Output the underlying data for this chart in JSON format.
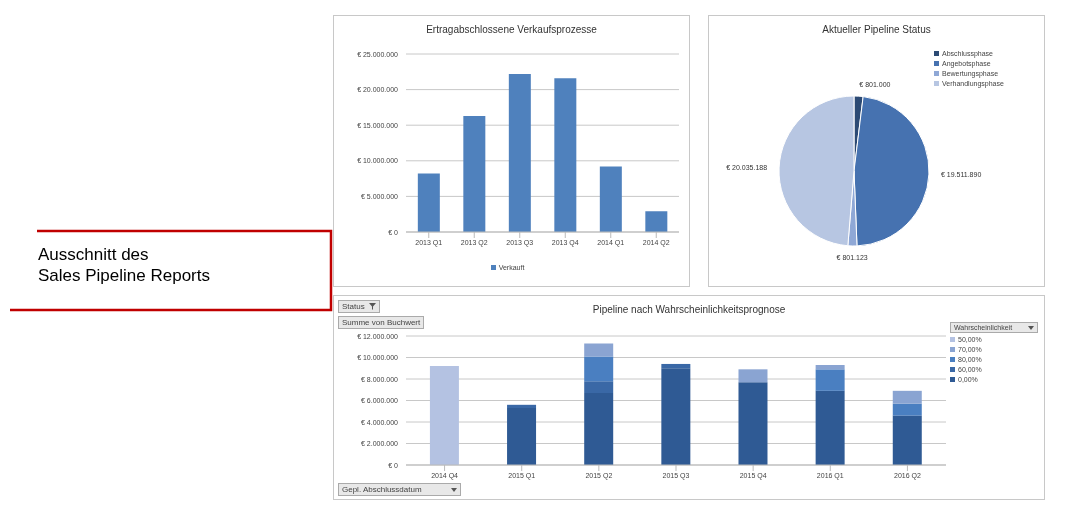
{
  "chart_data": [
    {
      "type": "bar",
      "title": "Ertragabschlossene Verkaufsprozesse",
      "categories": [
        "2013 Q1",
        "2013 Q2",
        "2013 Q3",
        "2013 Q4",
        "2014 Q1",
        "2014 Q2"
      ],
      "series": [
        {
          "name": "Verkauft",
          "color": "#4f81bd",
          "values": [
            8200000,
            16300000,
            22200000,
            21600000,
            9200000,
            2900000
          ]
        }
      ],
      "ylim": [
        0,
        25000000
      ],
      "yticks": [
        {
          "value": 0,
          "label": "€ 0"
        },
        {
          "value": 5000000,
          "label": "€ 5.000.000"
        },
        {
          "value": 10000000,
          "label": "€ 10.000.000"
        },
        {
          "value": 15000000,
          "label": "€ 15.000.000"
        },
        {
          "value": 20000000,
          "label": "€ 20.000.000"
        },
        {
          "value": 25000000,
          "label": "€ 25.000.000"
        }
      ],
      "grid": "y",
      "legend": "bottom"
    },
    {
      "type": "pie",
      "title": "Aktueller Pipeline Status",
      "categories": [
        "Abschlussphase",
        "Angebotsphase",
        "Bewertungsphase",
        "Verhandlungsphase"
      ],
      "values": [
        801000,
        19511890,
        801123,
        20035188
      ],
      "colors": [
        "#2c4a74",
        "#4672b0",
        "#8fa8d6",
        "#b7c6e2"
      ],
      "value_labels": [
        "€ 801.000",
        "€ 19.511.890",
        "€ 801.123",
        "€ 20.035.188"
      ],
      "legend": "top right"
    },
    {
      "type": "bar",
      "title": "Pipeline nach Wahrscheinlichkeitsprognose",
      "categories": [
        "2014 Q4",
        "2015 Q1",
        "2015 Q2",
        "2015 Q3",
        "2015 Q4",
        "2016 Q1",
        "2016 Q2"
      ],
      "series": [
        {
          "name": "0,00%",
          "color": "#2f5a94",
          "values": [
            0,
            5300000,
            6700000,
            9000000,
            7700000,
            6900000,
            4600000
          ]
        },
        {
          "name": "60,00%",
          "color": "#3a68a6",
          "values": [
            0,
            300000,
            1100000,
            400000,
            0,
            0,
            0
          ]
        },
        {
          "name": "80,00%",
          "color": "#4a7fc1",
          "values": [
            0,
            0,
            2300000,
            0,
            0,
            2000000,
            1100000
          ]
        },
        {
          "name": "70,00%",
          "color": "#8aa4d2",
          "values": [
            0,
            0,
            1200000,
            0,
            1200000,
            400000,
            1200000
          ]
        },
        {
          "name": "50,00%",
          "color": "#b4c2e2",
          "values": [
            9200000,
            0,
            0,
            0,
            0,
            0,
            0
          ]
        }
      ],
      "stacked": true,
      "ylim": [
        0,
        12000000
      ],
      "yticks": [
        {
          "value": 0,
          "label": "€ 0"
        },
        {
          "value": 2000000,
          "label": "€ 2.000.000"
        },
        {
          "value": 4000000,
          "label": "€ 4.000.000"
        },
        {
          "value": 6000000,
          "label": "€ 6.000.000"
        },
        {
          "value": 8000000,
          "label": "€ 8.000.000"
        },
        {
          "value": 10000000,
          "label": "€ 10.000.000"
        },
        {
          "value": 12000000,
          "label": "€ 12.000.000"
        }
      ],
      "grid": "y",
      "legend": "right",
      "legend_title": "Wahrscheinlichkeit",
      "annotations": [
        "Status",
        "Summe von Buchwert",
        "Gepl. Abschlussdatum"
      ]
    },
    {
      "type": "other",
      "annotations": [
        "Ausschnitt des\nSales Pipeline Reports"
      ]
    }
  ]
}
